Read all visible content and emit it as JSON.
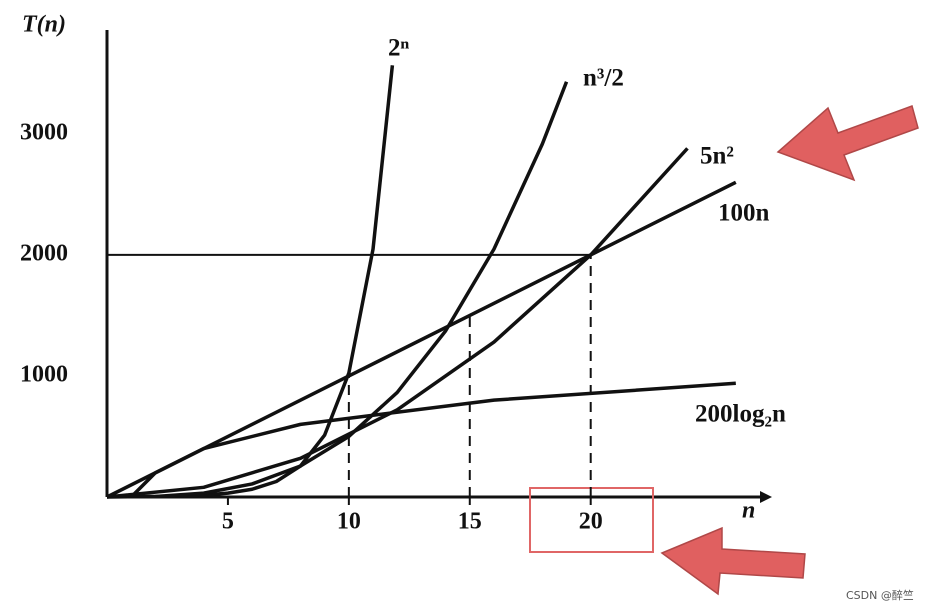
{
  "chart_data": {
    "type": "line",
    "y_label": "T(n)",
    "x_label": "n",
    "xlim": [
      0,
      27
    ],
    "ylim": [
      0,
      3800
    ],
    "xticks": [
      5,
      10,
      15,
      20
    ],
    "yticks": [
      1000,
      2000,
      3000
    ],
    "ref_x": [
      10,
      15,
      20
    ],
    "ref_y": [
      2000
    ],
    "series": [
      {
        "name": "2ⁿ",
        "color": "#111111",
        "x": [
          1,
          2,
          3,
          4,
          5,
          6,
          7,
          8,
          9,
          10,
          11,
          11.8
        ],
        "values": [
          2,
          4,
          8,
          16,
          32,
          64,
          128,
          256,
          512,
          1024,
          2048,
          3566
        ]
      },
      {
        "name": "n³/2",
        "color": "#111111",
        "x": [
          0,
          2,
          4,
          6,
          8,
          10,
          12,
          14,
          16,
          18,
          19
        ],
        "values": [
          0,
          4,
          32,
          108,
          256,
          500,
          864,
          1372,
          2048,
          2916,
          3430
        ]
      },
      {
        "name": "5n²",
        "color": "#111111",
        "x": [
          0,
          4,
          8,
          12,
          16,
          20,
          24
        ],
        "values": [
          0,
          80,
          320,
          720,
          1280,
          2000,
          2880
        ]
      },
      {
        "name": "100n",
        "color": "#111111",
        "x": [
          0,
          26
        ],
        "values": [
          0,
          2600
        ]
      },
      {
        "name": "200log₂n",
        "color": "#111111",
        "x": [
          1,
          2,
          4,
          8,
          16,
          26
        ],
        "values": [
          0,
          200,
          400,
          600,
          800,
          940
        ]
      }
    ],
    "watermark": "CSDN @醉竺"
  }
}
